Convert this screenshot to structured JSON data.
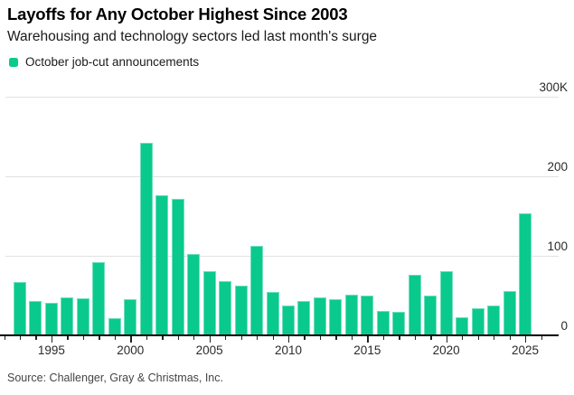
{
  "header": {
    "title": "Layoffs for Any October Highest Since 2003",
    "subtitle": "Warehousing and technology sectors led last month's surge",
    "legend_label": "October job-cut announcements"
  },
  "footer": {
    "source": "Source: Challenger, Gray & Christmas, Inc."
  },
  "colors": {
    "bar_green": "#0ac98c",
    "gridline": "#e2e2e2",
    "axis_line": "#000000",
    "axis_text": "#2a2a2a",
    "source_text": "#454545"
  },
  "chart_data": {
    "type": "bar",
    "title": "Layoffs for Any October Highest Since 2003",
    "subtitle": "Warehousing and technology sectors led last month's surge",
    "legend": [
      "October job-cut announcements"
    ],
    "legend_position": "top-left",
    "unit": "thousands of announced job cuts",
    "grid": "horizontal",
    "ylim": [
      0,
      300
    ],
    "y_axis_side": "right",
    "y_ticks": [
      {
        "label": "0",
        "value": 0
      },
      {
        "label": "100",
        "value": 100
      },
      {
        "label": "200",
        "value": 200
      },
      {
        "label": "300K",
        "value": 300
      }
    ],
    "x_labeled_years": [
      "1995",
      "2000",
      "2005",
      "2010",
      "2015",
      "2020",
      "2025"
    ],
    "x_tick_year_range": [
      1992,
      2026
    ],
    "categories": [
      1993,
      1994,
      1995,
      1996,
      1997,
      1998,
      1999,
      2000,
      2001,
      2002,
      2003,
      2004,
      2005,
      2006,
      2007,
      2008,
      2009,
      2010,
      2011,
      2012,
      2013,
      2014,
      2015,
      2016,
      2017,
      2018,
      2019,
      2020,
      2021,
      2022,
      2023,
      2024,
      2025
    ],
    "values": [
      67,
      43,
      41,
      48,
      47,
      92,
      22,
      45,
      242,
      176,
      172,
      102,
      81,
      68,
      62,
      113,
      55,
      38,
      43,
      48,
      46,
      51,
      50,
      31,
      30,
      76,
      50,
      81,
      23,
      34,
      37,
      56,
      153
    ],
    "xlabel": "",
    "ylabel": ""
  }
}
